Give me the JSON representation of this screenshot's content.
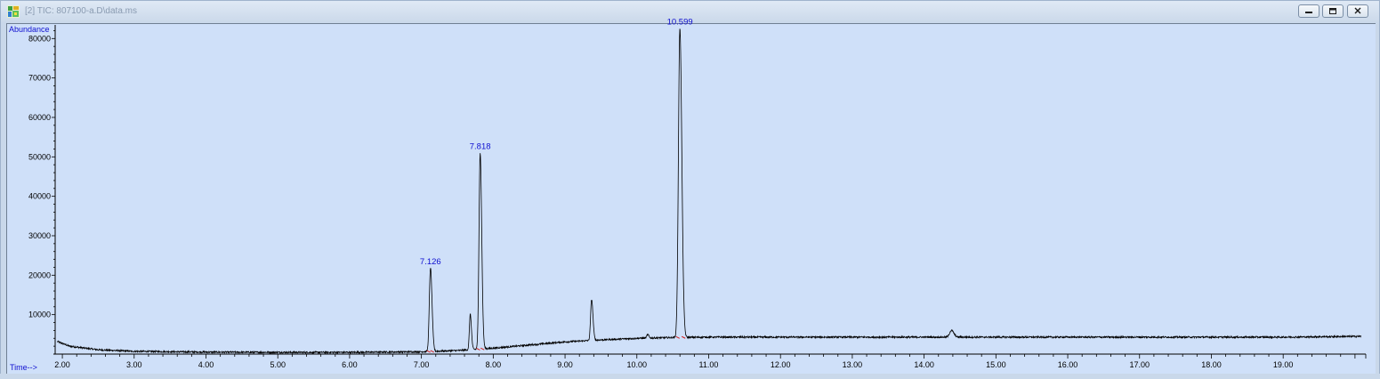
{
  "window": {
    "title": "[2] TIC: 807100-a.D\\data.ms",
    "icon": "chromatogram-app-icon",
    "controls": [
      "minimize-icon",
      "restore-icon",
      "close-icon"
    ]
  },
  "colors": {
    "plot_background": "#cfe0f9",
    "trace": "#000000",
    "peak_label": "#1010d0",
    "axis_label": "#1010d0",
    "baseline_marker": "#d02020"
  },
  "chart_data": {
    "type": "line",
    "title": "",
    "xlabel": "Time-->",
    "ylabel": "Abundance",
    "xlim": [
      1.9,
      20.15
    ],
    "ylim": [
      0,
      83000
    ],
    "x_ticks": [
      "2.00",
      "3.00",
      "4.00",
      "5.00",
      "6.00",
      "7.00",
      "8.00",
      "9.00",
      "10.00",
      "11.00",
      "12.00",
      "13.00",
      "14.00",
      "15.00",
      "16.00",
      "17.00",
      "18.00",
      "19.00"
    ],
    "x_tick_values": [
      2,
      3,
      4,
      5,
      6,
      7,
      8,
      9,
      10,
      11,
      12,
      13,
      14,
      15,
      16,
      17,
      18,
      19
    ],
    "y_ticks": [
      "10000",
      "20000",
      "30000",
      "40000",
      "50000",
      "60000",
      "70000",
      "80000"
    ],
    "y_tick_values": [
      10000,
      20000,
      30000,
      40000,
      50000,
      60000,
      70000,
      80000
    ],
    "grid": false,
    "baseline": {
      "x": [
        1.93,
        2.1,
        2.5,
        3.0,
        4.0,
        5.0,
        6.0,
        7.0,
        7.5,
        8.0,
        8.5,
        9.0,
        9.5,
        10.0,
        10.5,
        11.0,
        12.0,
        13.0,
        14.0,
        15.0,
        16.0,
        17.0,
        18.0,
        19.0,
        20.1
      ],
      "y": [
        3200,
        2000,
        1100,
        700,
        500,
        450,
        450,
        600,
        900,
        1500,
        2300,
        3100,
        3600,
        4000,
        4200,
        4300,
        4300,
        4300,
        4300,
        4300,
        4300,
        4300,
        4300,
        4300,
        4500
      ]
    },
    "peaks": [
      {
        "rt": 7.126,
        "height": 21200,
        "width": 0.016,
        "label": "7.126"
      },
      {
        "rt": 7.68,
        "height": 9000,
        "width": 0.012,
        "label": ""
      },
      {
        "rt": 7.818,
        "height": 49800,
        "width": 0.016,
        "label": "7.818"
      },
      {
        "rt": 9.37,
        "height": 10400,
        "width": 0.014,
        "label": ""
      },
      {
        "rt": 10.15,
        "height": 900,
        "width": 0.012,
        "label": ""
      },
      {
        "rt": 10.599,
        "height": 78500,
        "width": 0.02,
        "label": "10.599"
      },
      {
        "rt": 14.38,
        "height": 1700,
        "width": 0.025,
        "label": ""
      }
    ],
    "integration_markers": [
      7.1,
      7.15,
      7.79,
      7.85,
      10.57,
      10.65
    ]
  }
}
